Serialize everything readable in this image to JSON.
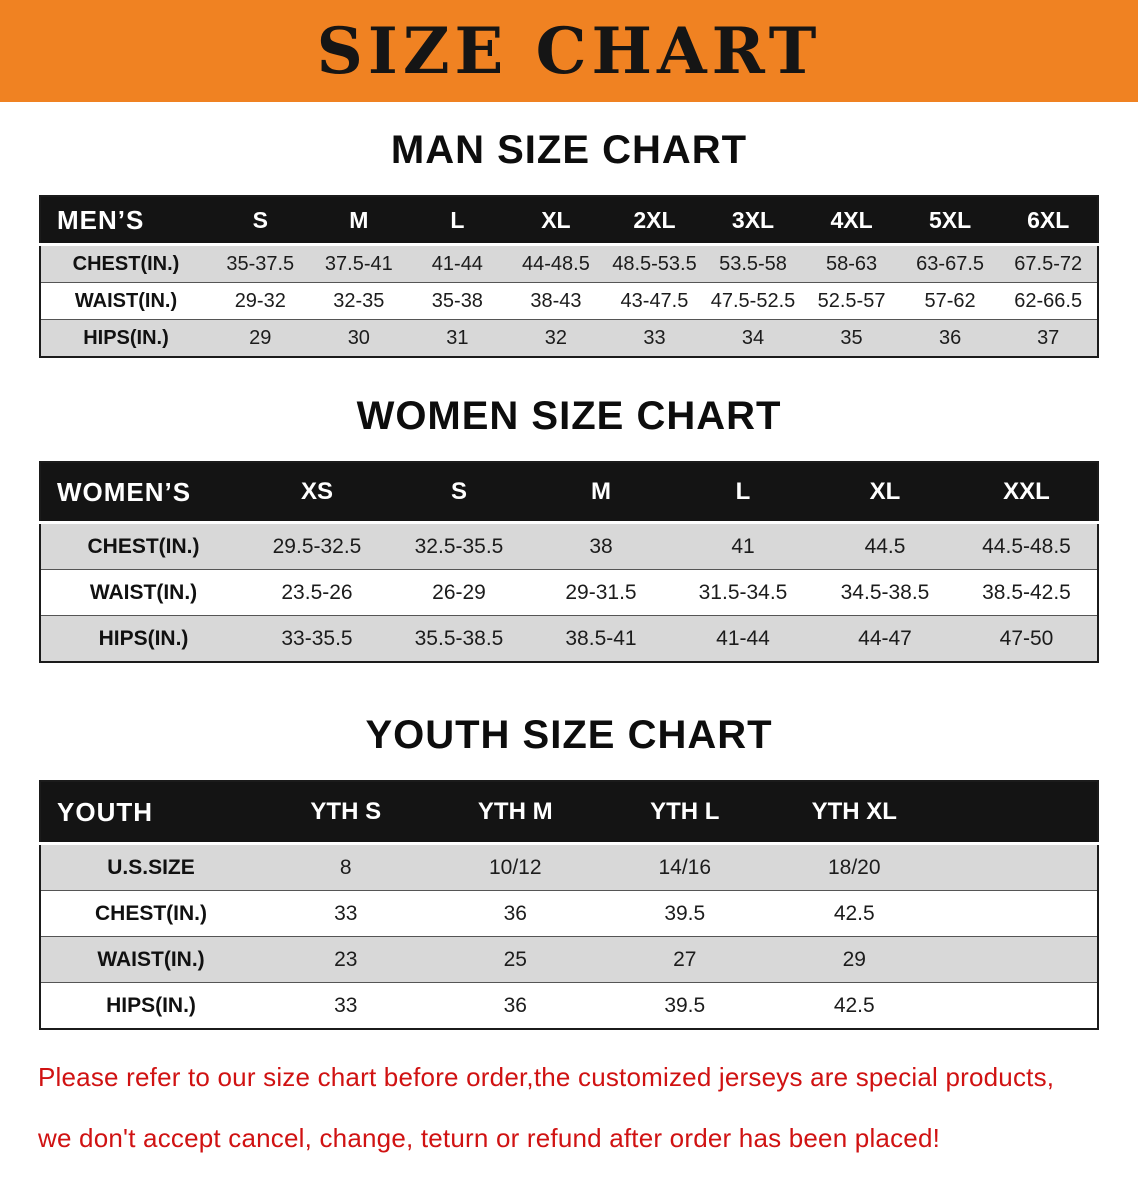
{
  "banner": {
    "title": "SIZE CHART"
  },
  "sections": [
    {
      "heading": "MAN SIZE CHART",
      "table": {
        "header": [
          "MEN’S",
          "S",
          "M",
          "L",
          "XL",
          "2XL",
          "3XL",
          "4XL",
          "5XL",
          "6XL"
        ],
        "rows": [
          [
            "CHEST(IN.)",
            "35-37.5",
            "37.5-41",
            "41-44",
            "44-48.5",
            "48.5-53.5",
            "53.5-58",
            "58-63",
            "63-67.5",
            "67.5-72"
          ],
          [
            "WAIST(IN.)",
            "29-32",
            "32-35",
            "35-38",
            "38-43",
            "43-47.5",
            "47.5-52.5",
            "52.5-57",
            "57-62",
            "62-66.5"
          ],
          [
            "HIPS(IN.)",
            "29",
            "30",
            "31",
            "32",
            "33",
            "34",
            "35",
            "36",
            "37"
          ]
        ]
      }
    },
    {
      "heading": "WOMEN SIZE CHART",
      "table": {
        "header": [
          "WOMEN’S",
          "XS",
          "S",
          "M",
          "L",
          "XL",
          "XXL"
        ],
        "rows": [
          [
            "CHEST(IN.)",
            "29.5-32.5",
            "32.5-35.5",
            "38",
            "41",
            "44.5",
            "44.5-48.5"
          ],
          [
            "WAIST(IN.)",
            "23.5-26",
            "26-29",
            "29-31.5",
            "31.5-34.5",
            "34.5-38.5",
            "38.5-42.5"
          ],
          [
            "HIPS(IN.)",
            "33-35.5",
            "35.5-38.5",
            "38.5-41",
            "41-44",
            "44-47",
            "47-50"
          ]
        ]
      }
    },
    {
      "heading": "YOUTH SIZE CHART",
      "table": {
        "header": [
          "YOUTH",
          "YTH S",
          "YTH M",
          "YTH L",
          "YTH XL"
        ],
        "rows": [
          [
            "U.S.SIZE",
            "8",
            "10/12",
            "14/16",
            "18/20"
          ],
          [
            "CHEST(IN.)",
            "33",
            "36",
            "39.5",
            "42.5"
          ],
          [
            "WAIST(IN.)",
            "23",
            "25",
            "27",
            "29"
          ],
          [
            "HIPS(IN.)",
            "33",
            "36",
            "39.5",
            "42.5"
          ]
        ]
      }
    }
  ],
  "disclaimer": {
    "line1": "Please refer to our size chart before order,the customized jerseys are special products,",
    "line2": "we don't accept cancel, change, teturn or refund after order has been placed!"
  },
  "colors": {
    "banner_bg": "#F08222",
    "banner_text": "#151515",
    "table_header_bg": "#141414",
    "table_header_text": "#FFFFFF",
    "row_stripe_bg": "#D8D8D8",
    "disclaimer_text": "#D01212"
  }
}
